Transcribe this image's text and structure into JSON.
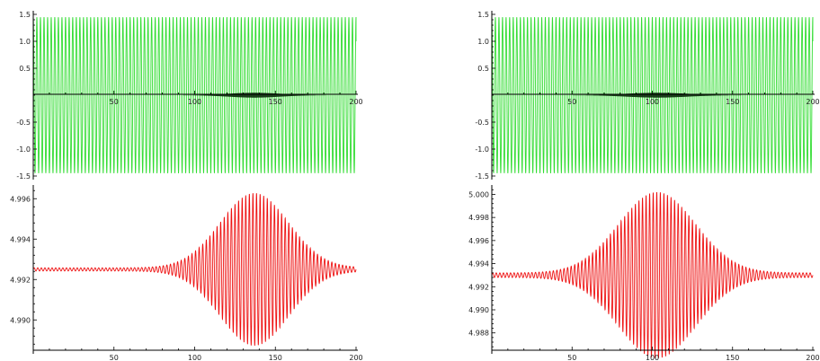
{
  "colors": {
    "axis": "#000000",
    "signal": "#33dd33",
    "envelope_fill": "#0a2a0a",
    "response": "#ee1111"
  },
  "chart_data": [
    {
      "type": "line",
      "panel": "top-left",
      "xlim": [
        0,
        200
      ],
      "ylim": [
        -1.5,
        1.5
      ],
      "x_ticks": [
        "50",
        "100",
        "150",
        "200"
      ],
      "y_ticks": [
        "-1.5",
        "-1.0",
        "-0.5",
        "0.5",
        "1.0",
        "1.5"
      ],
      "grid": false,
      "series": [
        {
          "role": "carrier",
          "amplitude": 1.45,
          "cycles": 90,
          "x_end": 200,
          "end_value": 1.0,
          "color": "#33dd33"
        },
        {
          "role": "envelope",
          "center": 137,
          "width": 23,
          "peak": 0.045,
          "color": "#0a2a0a"
        }
      ]
    },
    {
      "type": "line",
      "panel": "bottom-left",
      "xlim": [
        0,
        200
      ],
      "ylim": [
        4.9885,
        4.9965
      ],
      "x_ticks": [
        "50",
        "100",
        "150",
        "200"
      ],
      "y_ticks": [
        "4.990",
        "4.992",
        "4.994",
        "4.996"
      ],
      "grid": false,
      "series": [
        {
          "role": "response",
          "baseline": 4.9925,
          "center": 137,
          "width": 30,
          "peak": 0.0037,
          "min_amplitude": 8e-05,
          "cycles": 90,
          "color": "#ee1111"
        }
      ]
    },
    {
      "type": "line",
      "panel": "top-right",
      "xlim": [
        0,
        200
      ],
      "ylim": [
        -1.5,
        1.5
      ],
      "x_ticks": [
        "50",
        "100",
        "150",
        "200"
      ],
      "y_ticks": [
        "-1.5",
        "-1.0",
        "-0.5",
        "0.5",
        "1.0",
        "1.5"
      ],
      "grid": false,
      "series": [
        {
          "role": "carrier",
          "amplitude": 1.45,
          "cycles": 90,
          "x_end": 200,
          "end_value": 1.0,
          "color": "#33dd33"
        },
        {
          "role": "envelope",
          "center": 103,
          "width": 27,
          "peak": 0.045,
          "color": "#0a2a0a"
        }
      ]
    },
    {
      "type": "line",
      "panel": "bottom-right",
      "xlim": [
        0,
        200
      ],
      "ylim": [
        4.9865,
        5.0005
      ],
      "x_ticks": [
        "50",
        "100",
        "150",
        "200"
      ],
      "y_ticks": [
        "4.988",
        "4.990",
        "4.992",
        "4.994",
        "4.996",
        "4.998",
        "5.000"
      ],
      "grid": false,
      "series": [
        {
          "role": "response",
          "baseline": 4.993,
          "center": 103,
          "width": 34,
          "peak": 0.007,
          "min_amplitude": 0.0002,
          "cycles": 90,
          "color": "#ee1111"
        }
      ]
    }
  ]
}
